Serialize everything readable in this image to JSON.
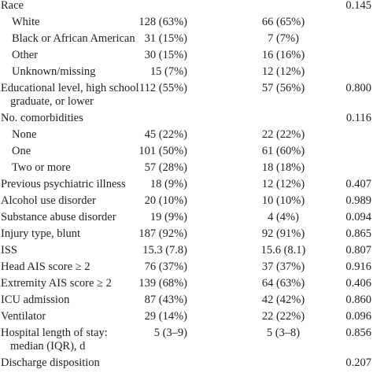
{
  "table": {
    "rows": [
      {
        "label": [
          "Race"
        ],
        "p": "0.145",
        "items": [
          {
            "label": "White",
            "values": [
              "128 (63%)",
              "66 (65%)"
            ]
          },
          {
            "label": "Black or African American",
            "values": [
              "31 (15%)",
              "7 (7%)"
            ]
          },
          {
            "label": "Other",
            "values": [
              "30 (15%)",
              "16 (16%)"
            ]
          },
          {
            "label": "Unknown/missing",
            "values": [
              "15 (7%)",
              "12 (12%)"
            ]
          }
        ]
      },
      {
        "label": [
          "Educational level, high school",
          "graduate, or lower"
        ],
        "values": [
          "112 (55%)",
          "57 (56%)"
        ],
        "p": "0.800"
      },
      {
        "label": [
          "No. comorbidities"
        ],
        "p": "0.116",
        "items": [
          {
            "label": "None",
            "values": [
              "45 (22%)",
              "22 (22%)"
            ]
          },
          {
            "label": "One",
            "values": [
              "101 (50%)",
              "61 (60%)"
            ]
          },
          {
            "label": "Two or more",
            "values": [
              "57 (28%)",
              "18 (18%)"
            ]
          }
        ]
      },
      {
        "label": [
          "Previous psychiatric illness"
        ],
        "values": [
          "18 (9%)",
          "12 (12%)"
        ],
        "p": "0.407"
      },
      {
        "label": [
          "Alcohol use disorder"
        ],
        "values": [
          "20 (10%)",
          "10 (10%)"
        ],
        "p": "0.989"
      },
      {
        "label": [
          "Substance abuse disorder"
        ],
        "values": [
          "19 (9%)",
          "4 (4%)"
        ],
        "p": "0.094"
      },
      {
        "label": [
          "Injury type, blunt"
        ],
        "values": [
          "187 (92%)",
          "92 (91%)"
        ],
        "p": "0.865"
      },
      {
        "label": [
          "ISS"
        ],
        "values": [
          "15.3 (7.8)",
          "15.6 (8.1)"
        ],
        "p": "0.807"
      },
      {
        "label": [
          "Head AIS score ≥ 2"
        ],
        "values": [
          "76 (37%)",
          "37 (37%)"
        ],
        "p": "0.916"
      },
      {
        "label": [
          "Extremity AIS score ≥ 2"
        ],
        "values": [
          "139 (68%)",
          "64 (63%)"
        ],
        "p": "0.406"
      },
      {
        "label": [
          "ICU admission"
        ],
        "values": [
          "87 (43%)",
          "42 (42%)"
        ],
        "p": "0.860"
      },
      {
        "label": [
          "Ventilator"
        ],
        "values": [
          "29 (14%)",
          "22 (22%)"
        ],
        "p": "0.096"
      },
      {
        "label": [
          "Hospital length of stay:",
          "median (IQR), d"
        ],
        "values": [
          "5 (3–9)",
          "5 (3–8)"
        ],
        "p": "0.856"
      },
      {
        "label": [
          "Discharge disposition"
        ],
        "p": "0.207"
      }
    ]
  }
}
